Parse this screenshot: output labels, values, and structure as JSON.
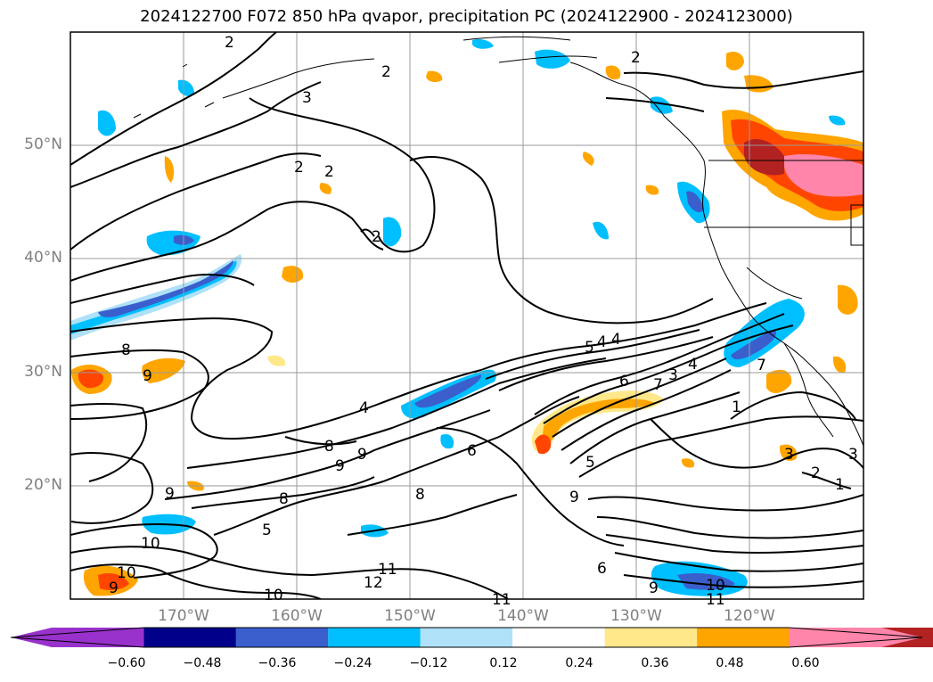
{
  "title": "2024122700 F072 850 hPa qvapor, precipitation PC (2024122900 - 2024123000)",
  "latitude_labels": [
    "50°N",
    "40°N",
    "30°N",
    "20°N"
  ],
  "longitude_labels": [
    "170°W",
    "160°W",
    "150°W",
    "140°W",
    "130°W",
    "120°W"
  ],
  "colorbar": {
    "ticks": [
      "−0.60",
      "−0.48",
      "−0.36",
      "−0.24",
      "−0.12",
      "0.12",
      "0.24",
      "0.36",
      "0.48",
      "0.60"
    ],
    "colors": [
      "#9932cc",
      "#00008b",
      "#3a5fcd",
      "#00bfff",
      "#afe1f8",
      "#ffffff",
      "#ffe88a",
      "#ffa500",
      "#ff4500",
      "#b22222",
      "#ff85aa"
    ]
  },
  "contour_labels": [
    "2",
    "2",
    "3",
    "2",
    "2",
    "2",
    "2",
    "9",
    "8",
    "9",
    "8",
    "9",
    "9",
    "8",
    "8",
    "10",
    "9",
    "10",
    "11",
    "12",
    "10",
    "11",
    "4",
    "5",
    "4",
    "6",
    "7",
    "3",
    "4",
    "5",
    "6",
    "9",
    "6",
    "9",
    "10",
    "11",
    "7",
    "1",
    "3",
    "2",
    "1",
    "3",
    "4",
    "5"
  ]
}
